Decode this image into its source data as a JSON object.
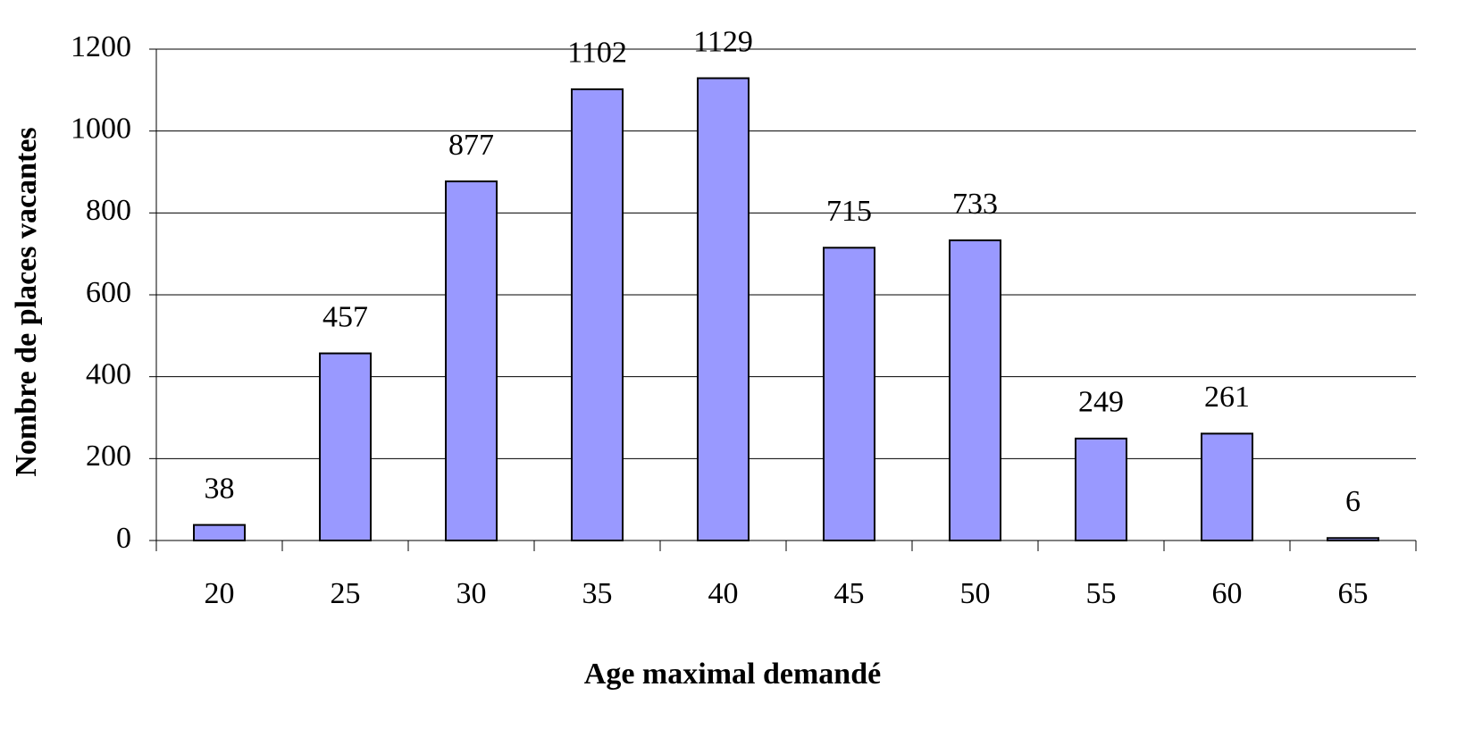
{
  "chart_data": {
    "type": "bar",
    "xlabel": "Age maximal demandé",
    "ylabel": "Nombre de places vacantes",
    "categories": [
      "20",
      "25",
      "30",
      "35",
      "40",
      "45",
      "50",
      "55",
      "60",
      "65"
    ],
    "values": [
      38,
      457,
      877,
      1102,
      1129,
      715,
      733,
      249,
      261,
      6
    ],
    "color": "#9999ff",
    "ylim": [
      0,
      1200
    ],
    "yticks": [
      0,
      200,
      400,
      600,
      800,
      1000,
      1200
    ],
    "grid": true
  }
}
